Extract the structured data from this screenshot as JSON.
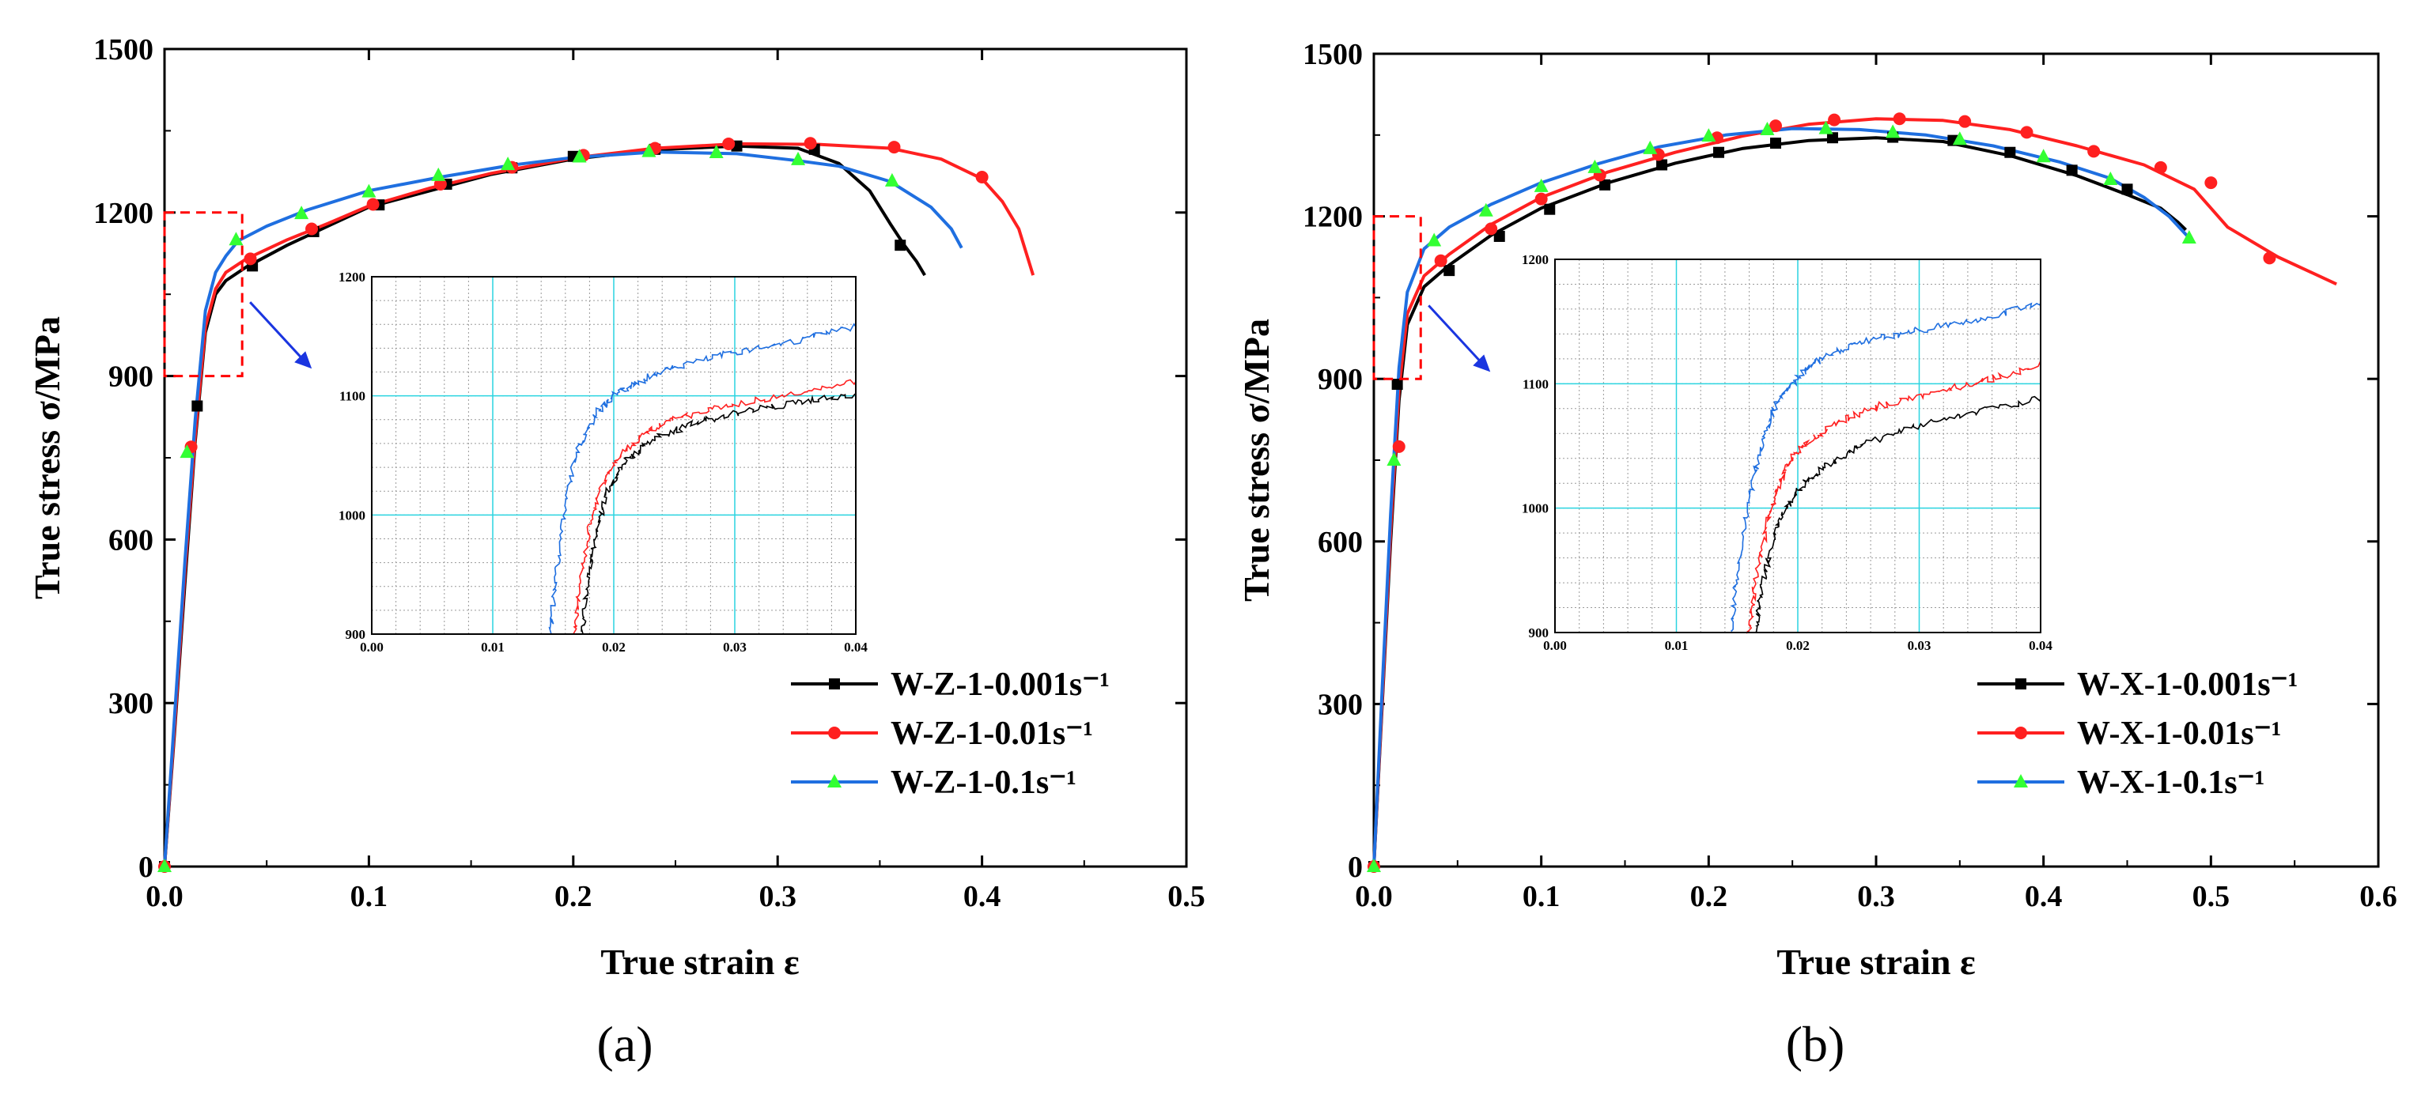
{
  "colors": {
    "black": "#000000",
    "red": "#ff2020",
    "blue": "#1f6fe0",
    "green": "#33ff33",
    "grid": "#9a9a9a",
    "inset_grid_major": "#2ad4e0",
    "zoom_box": "#ff0000",
    "arrow": "#1a35e0"
  },
  "panels": [
    {
      "label": "(a)",
      "legend": [
        "W-Z-1-0.001s⁻¹",
        "W-Z-1-0.01s⁻¹",
        "W-Z-1-0.1s⁻¹"
      ]
    },
    {
      "label": "(b)",
      "legend": [
        "W-X-1-0.001s⁻¹",
        "W-X-1-0.01s⁻¹",
        "W-X-1-0.1s⁻¹"
      ]
    }
  ],
  "chart_data": [
    {
      "type": "line",
      "xlabel": "True strain ε",
      "ylabel": "True stress σ/MPa",
      "xlim": [
        0,
        0.5
      ],
      "ylim": [
        0,
        1500
      ],
      "xticks": [
        "0.0",
        "0.1",
        "0.2",
        "0.3",
        "0.4",
        "0.5"
      ],
      "yticks": [
        "0",
        "300",
        "600",
        "900",
        "1200",
        "1500"
      ],
      "zoom_region": {
        "x": [
          0,
          0.038
        ],
        "y": [
          900,
          1200
        ]
      },
      "series": [
        {
          "name": "W-Z-1-0.001s⁻¹",
          "color": "#000000",
          "marker": "square",
          "x": [
            0,
            0.005,
            0.01,
            0.015,
            0.02,
            0.025,
            0.03,
            0.04,
            0.06,
            0.08,
            0.1,
            0.13,
            0.16,
            0.2,
            0.24,
            0.28,
            0.31,
            0.33,
            0.345,
            0.355,
            0.362,
            0.368,
            0.372
          ],
          "y": [
            0,
            250,
            520,
            780,
            980,
            1050,
            1075,
            1100,
            1140,
            1175,
            1210,
            1240,
            1270,
            1298,
            1315,
            1322,
            1318,
            1290,
            1240,
            1180,
            1140,
            1110,
            1085
          ]
        },
        {
          "name": "W-Z-1-0.01s⁻¹",
          "color": "#ff2020",
          "marker": "circle",
          "x": [
            0,
            0.005,
            0.01,
            0.015,
            0.02,
            0.025,
            0.03,
            0.04,
            0.06,
            0.08,
            0.1,
            0.13,
            0.16,
            0.2,
            0.24,
            0.28,
            0.32,
            0.355,
            0.38,
            0.4,
            0.41,
            0.418,
            0.425
          ],
          "y": [
            0,
            260,
            540,
            790,
            990,
            1060,
            1090,
            1115,
            1150,
            1180,
            1212,
            1245,
            1272,
            1300,
            1318,
            1326,
            1325,
            1318,
            1298,
            1262,
            1220,
            1170,
            1085
          ]
        },
        {
          "name": "W-Z-1-0.1s⁻¹",
          "color": "#1f6fe0",
          "marker": "triangle",
          "x": [
            0,
            0.005,
            0.01,
            0.015,
            0.02,
            0.025,
            0.03,
            0.036,
            0.05,
            0.07,
            0.1,
            0.135,
            0.17,
            0.2,
            0.24,
            0.28,
            0.31,
            0.33,
            0.355,
            0.375,
            0.385,
            0.39
          ],
          "y": [
            0,
            280,
            560,
            820,
            1020,
            1090,
            1120,
            1148,
            1175,
            1205,
            1240,
            1265,
            1287,
            1301,
            1311,
            1308,
            1295,
            1285,
            1257,
            1210,
            1170,
            1135
          ]
        }
      ],
      "markers": {
        "W-Z-1-0.001s⁻¹": {
          "x": [
            0.0,
            0.016,
            0.043,
            0.073,
            0.105,
            0.138,
            0.17,
            0.2,
            0.24,
            0.28,
            0.318,
            0.36
          ],
          "y": [
            0,
            845,
            1102,
            1165,
            1214,
            1252,
            1282,
            1303,
            1316,
            1322,
            1316,
            1140
          ]
        },
        "W-Z-1-0.01s⁻¹": {
          "x": [
            0.0,
            0.013,
            0.042,
            0.072,
            0.102,
            0.135,
            0.17,
            0.205,
            0.24,
            0.276,
            0.316,
            0.357,
            0.4
          ],
          "y": [
            0,
            770,
            1115,
            1170,
            1215,
            1252,
            1283,
            1305,
            1318,
            1326,
            1327,
            1320,
            1265
          ]
        },
        "W-Z-1-0.1s⁻¹": {
          "x": [
            0.0,
            0.011,
            0.035,
            0.067,
            0.1,
            0.134,
            0.168,
            0.203,
            0.237,
            0.27,
            0.31,
            0.356
          ],
          "y": [
            0,
            760,
            1150,
            1198,
            1238,
            1268,
            1288,
            1302,
            1312,
            1310,
            1297,
            1258
          ]
        }
      },
      "inset": {
        "xlim": [
          0,
          0.04
        ],
        "ylim": [
          900,
          1200
        ],
        "xticks": [
          "0.00",
          "0.01",
          "0.02",
          "0.03",
          "0.04"
        ],
        "yticks": [
          "900",
          "1000",
          "1100",
          "1200"
        ],
        "series": [
          {
            "name": "W-Z-1-0.001s⁻¹",
            "color": "#000000",
            "x": [
              0.0174,
              0.0178,
              0.0185,
              0.0195,
              0.021,
              0.023,
              0.026,
              0.03,
              0.035,
              0.04
            ],
            "y": [
              900,
              940,
              985,
              1020,
              1045,
              1062,
              1075,
              1085,
              1094,
              1102
            ]
          },
          {
            "name": "W-Z-1-0.01s⁻¹",
            "color": "#ff2020",
            "x": [
              0.0168,
              0.0172,
              0.018,
              0.019,
              0.0205,
              0.0225,
              0.025,
              0.029,
              0.034,
              0.04
            ],
            "y": [
              900,
              940,
              990,
              1025,
              1050,
              1068,
              1080,
              1091,
              1100,
              1112
            ]
          },
          {
            "name": "W-Z-1-0.1s⁻¹",
            "color": "#1f6fe0",
            "x": [
              0.0148,
              0.0152,
              0.016,
              0.017,
              0.0185,
              0.02,
              0.022,
              0.025,
              0.03,
              0.035,
              0.04
            ],
            "y": [
              900,
              950,
              1010,
              1055,
              1085,
              1100,
              1112,
              1124,
              1137,
              1146,
              1158
            ]
          }
        ]
      }
    },
    {
      "type": "line",
      "xlabel": "True strain ε",
      "ylabel": "True stress σ/MPa",
      "xlim": [
        0,
        0.6
      ],
      "ylim": [
        0,
        1500
      ],
      "xticks": [
        "0.0",
        "0.1",
        "0.2",
        "0.3",
        "0.4",
        "0.5",
        "0.6"
      ],
      "yticks": [
        "0",
        "300",
        "600",
        "900",
        "1200",
        "1500"
      ],
      "zoom_region": {
        "x": [
          0,
          0.028
        ],
        "y": [
          900,
          1200
        ]
      },
      "series": [
        {
          "name": "W-X-1-0.001s⁻¹",
          "color": "#000000",
          "marker": "square",
          "x": [
            0,
            0.005,
            0.01,
            0.015,
            0.02,
            0.03,
            0.045,
            0.07,
            0.1,
            0.14,
            0.18,
            0.22,
            0.26,
            0.3,
            0.34,
            0.38,
            0.42,
            0.45,
            0.47,
            0.48,
            0.485
          ],
          "y": [
            0,
            300,
            600,
            860,
            1000,
            1070,
            1110,
            1165,
            1215,
            1262,
            1298,
            1325,
            1340,
            1345,
            1338,
            1312,
            1275,
            1240,
            1215,
            1190,
            1175
          ]
        },
        {
          "name": "W-X-1-0.01s⁻¹",
          "color": "#ff2020",
          "marker": "circle",
          "x": [
            0,
            0.005,
            0.01,
            0.015,
            0.02,
            0.03,
            0.045,
            0.07,
            0.1,
            0.14,
            0.18,
            0.22,
            0.26,
            0.3,
            0.34,
            0.38,
            0.42,
            0.46,
            0.49,
            0.51,
            0.54,
            0.575
          ],
          "y": [
            0,
            310,
            620,
            880,
            1020,
            1090,
            1130,
            1185,
            1235,
            1282,
            1318,
            1348,
            1370,
            1380,
            1377,
            1360,
            1330,
            1295,
            1250,
            1180,
            1125,
            1075
          ]
        },
        {
          "name": "W-X-1-0.1s⁻¹",
          "color": "#1f6fe0",
          "marker": "triangle",
          "x": [
            0,
            0.005,
            0.01,
            0.015,
            0.02,
            0.03,
            0.045,
            0.07,
            0.1,
            0.135,
            0.17,
            0.21,
            0.25,
            0.29,
            0.33,
            0.37,
            0.41,
            0.44,
            0.46,
            0.475,
            0.487
          ],
          "y": [
            0,
            330,
            650,
            920,
            1060,
            1140,
            1180,
            1222,
            1262,
            1298,
            1328,
            1350,
            1362,
            1360,
            1350,
            1330,
            1300,
            1270,
            1235,
            1200,
            1160
          ]
        }
      ],
      "markers": {
        "W-X-1-0.001s⁻¹": {
          "x": [
            0.0,
            0.014,
            0.045,
            0.075,
            0.105,
            0.138,
            0.172,
            0.206,
            0.24,
            0.274,
            0.31,
            0.346,
            0.38,
            0.417,
            0.45
          ],
          "y": [
            0,
            890,
            1100,
            1163,
            1213,
            1258,
            1295,
            1318,
            1335,
            1345,
            1346,
            1340,
            1318,
            1285,
            1250
          ]
        },
        "W-X-1-0.01s⁻¹": {
          "x": [
            0.0,
            0.015,
            0.04,
            0.07,
            0.1,
            0.135,
            0.17,
            0.205,
            0.24,
            0.275,
            0.314,
            0.353,
            0.39,
            0.43,
            0.47,
            0.5,
            0.535
          ],
          "y": [
            0,
            775,
            1118,
            1177,
            1232,
            1276,
            1314,
            1345,
            1367,
            1378,
            1380,
            1375,
            1355,
            1320,
            1290,
            1262,
            1123
          ]
        },
        "W-X-1-0.1s⁻¹": {
          "x": [
            0.0,
            0.012,
            0.036,
            0.067,
            0.1,
            0.132,
            0.165,
            0.2,
            0.235,
            0.27,
            0.31,
            0.35,
            0.4,
            0.44,
            0.487
          ],
          "y": [
            0,
            750,
            1155,
            1210,
            1255,
            1290,
            1325,
            1348,
            1360,
            1362,
            1355,
            1342,
            1310,
            1268,
            1160
          ]
        }
      },
      "inset": {
        "xlim": [
          0,
          0.04
        ],
        "ylim": [
          900,
          1200
        ],
        "xticks": [
          "0.00",
          "0.01",
          "0.02",
          "0.03",
          "0.04"
        ],
        "yticks": [
          "900",
          "1000",
          "1100",
          "1200"
        ],
        "series": [
          {
            "name": "W-X-1-0.001s⁻¹",
            "color": "#000000",
            "x": [
              0.0165,
              0.017,
              0.018,
              0.019,
              0.0205,
              0.0225,
              0.025,
              0.029,
              0.034,
              0.04
            ],
            "y": [
              900,
              935,
              975,
              1000,
              1020,
              1035,
              1050,
              1064,
              1076,
              1088
            ]
          },
          {
            "name": "W-X-1-0.01s⁻¹",
            "color": "#ff2020",
            "x": [
              0.016,
              0.0165,
              0.0175,
              0.0185,
              0.0195,
              0.021,
              0.0235,
              0.027,
              0.032,
              0.036,
              0.04
            ],
            "y": [
              900,
              940,
              990,
              1020,
              1040,
              1055,
              1070,
              1083,
              1095,
              1104,
              1115
            ]
          },
          {
            "name": "W-X-1-0.1s⁻¹",
            "color": "#1f6fe0",
            "x": [
              0.0145,
              0.015,
              0.016,
              0.017,
              0.018,
              0.0195,
              0.021,
              0.023,
              0.026,
              0.03,
              0.035,
              0.04
            ],
            "y": [
              900,
              950,
              1010,
              1050,
              1080,
              1100,
              1115,
              1125,
              1135,
              1143,
              1152,
              1165
            ]
          }
        ]
      }
    }
  ]
}
